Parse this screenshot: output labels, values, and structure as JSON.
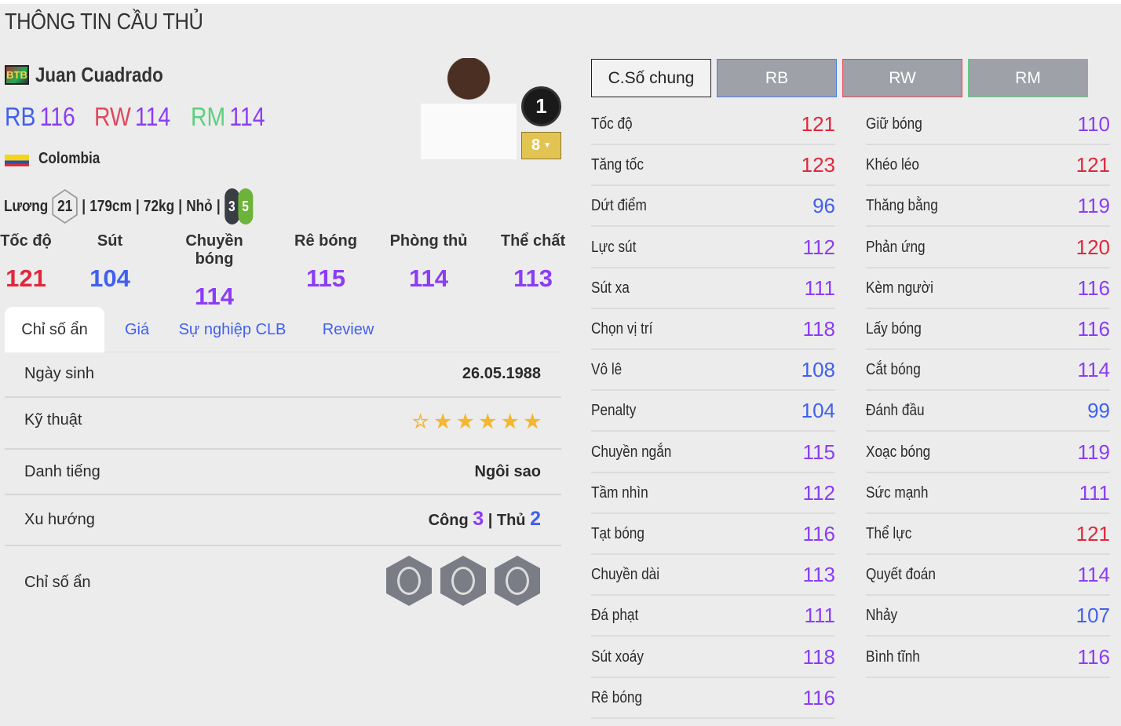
{
  "page_title": "THÔNG TIN CẦU THỦ",
  "player": {
    "season_badge": "BTB",
    "name": "Juan Cuadrado",
    "positions": [
      {
        "pos": "RB",
        "rating": "116",
        "color": "#4160ee"
      },
      {
        "pos": "RW",
        "rating": "114",
        "color": "#e0485c"
      },
      {
        "pos": "RM",
        "rating": "114",
        "color": "#5cd07c"
      }
    ],
    "nation": "Colombia",
    "salary_label": "Lương",
    "salary": "21",
    "height": "179cm",
    "weight": "72kg",
    "body": "Nhỏ",
    "weak_foot": "3",
    "strong_foot": "5",
    "team_color": "1",
    "upgrade": "8"
  },
  "categories": [
    {
      "label": "Tốc độ",
      "value": "121",
      "c": "red"
    },
    {
      "label": "Sút",
      "value": "104",
      "c": "blu"
    },
    {
      "label": "Chuyền bóng",
      "value": "114",
      "c": "pur"
    },
    {
      "label": "Rê bóng",
      "value": "115",
      "c": "pur"
    },
    {
      "label": "Phòng thủ",
      "value": "114",
      "c": "pur"
    },
    {
      "label": "Thể chất",
      "value": "113",
      "c": "pur"
    }
  ],
  "tabs": [
    "Chỉ số ẩn",
    "Giá",
    "Sự nghiệp CLB",
    "Review"
  ],
  "details": {
    "birth_label": "Ngày sinh",
    "birth": "26.05.1988",
    "skill_label": "Kỹ thuật",
    "skill_stars": 5,
    "skill_max": 6,
    "rep_label": "Danh tiếng",
    "rep": "Ngôi sao",
    "wr_label": "Xu hướng",
    "att_label": "Công",
    "att": "3",
    "def_label": "Thủ",
    "def": "2",
    "traits_label": "Chỉ số ẩn",
    "traits": [
      "speedster-icon",
      "dribbler-icon",
      "playmaker-icon"
    ]
  },
  "stat_tabs": [
    {
      "label": "C.Số chung",
      "active": true,
      "border": "#222"
    },
    {
      "label": "RB",
      "border": "#4a7fe6"
    },
    {
      "label": "RW",
      "border": "#e0485c"
    },
    {
      "label": "RM",
      "border": "#5cd07c"
    }
  ],
  "stats_left": [
    [
      "Tốc độ",
      "121"
    ],
    [
      "Tăng tốc",
      "123"
    ],
    [
      "Dứt điểm",
      "96"
    ],
    [
      "Lực sút",
      "112"
    ],
    [
      "Sút xa",
      "111"
    ],
    [
      "Chọn vị trí",
      "118"
    ],
    [
      "Vô lê",
      "108"
    ],
    [
      "Penalty",
      "104"
    ],
    [
      "Chuyền ngắn",
      "115"
    ],
    [
      "Tầm nhìn",
      "112"
    ],
    [
      "Tạt bóng",
      "116"
    ],
    [
      "Chuyền dài",
      "113"
    ],
    [
      "Đá phạt",
      "111"
    ],
    [
      "Sút xoáy",
      "118"
    ],
    [
      "Rê bóng",
      "116"
    ]
  ],
  "stats_right": [
    [
      "Giữ bóng",
      "110"
    ],
    [
      "Khéo léo",
      "121"
    ],
    [
      "Thăng bằng",
      "119"
    ],
    [
      "Phản ứng",
      "120"
    ],
    [
      "Kèm người",
      "116"
    ],
    [
      "Lấy bóng",
      "116"
    ],
    [
      "Cắt bóng",
      "114"
    ],
    [
      "Đánh đầu",
      "99"
    ],
    [
      "Xoạc bóng",
      "119"
    ],
    [
      "Sức mạnh",
      "111"
    ],
    [
      "Thể lực",
      "121"
    ],
    [
      "Quyết đoán",
      "114"
    ],
    [
      "Nhảy",
      "107"
    ],
    [
      "Bình tĩnh",
      "116"
    ]
  ],
  "colors": {
    "high": "#e0283c",
    "mid": "#8b3df5",
    "low": "#4160ee"
  }
}
